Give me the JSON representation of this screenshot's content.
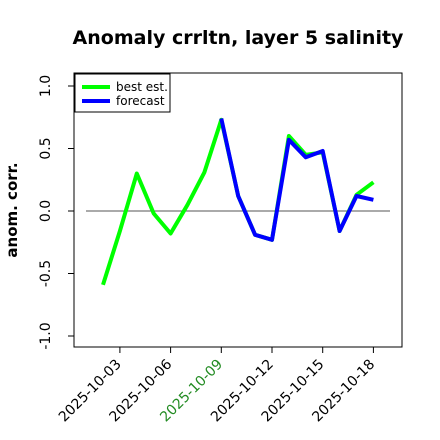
{
  "chart_data": {
    "type": "line",
    "title": "Anomaly crrltn, layer 5 salinity",
    "xlabel": "",
    "ylabel": "anom. corr.",
    "ylim": [
      -1.0,
      1.0
    ],
    "yticks": [
      "-1.0",
      "-0.5",
      "0.0",
      "0.5",
      "1.0"
    ],
    "xticks": [
      "2025-10-03",
      "2025-10-06",
      "2025-10-09",
      "2025-10-12",
      "2025-10-15",
      "2025-10-18"
    ],
    "highlight_tick": "2025-10-09",
    "highlight_color": "#228B22",
    "reference_line": 0.0,
    "legend_position": "top-left",
    "x": [
      "2025-10-02",
      "2025-10-03",
      "2025-10-04",
      "2025-10-05",
      "2025-10-06",
      "2025-10-07",
      "2025-10-08",
      "2025-10-09",
      "2025-10-10",
      "2025-10-11",
      "2025-10-12",
      "2025-10-13",
      "2025-10-14",
      "2025-10-15",
      "2025-10-16",
      "2025-10-17",
      "2025-10-18"
    ],
    "series": [
      {
        "name": "best est.",
        "color": "#00ff00",
        "values": [
          -0.59,
          -0.16,
          0.3,
          -0.02,
          -0.18,
          0.05,
          0.31,
          0.73,
          0.12,
          -0.19,
          -0.23,
          0.6,
          0.45,
          0.47,
          -0.16,
          0.13,
          0.23
        ]
      },
      {
        "name": "forecast",
        "color": "#0000ff",
        "values": [
          null,
          null,
          null,
          null,
          null,
          null,
          null,
          0.74,
          0.12,
          -0.19,
          -0.23,
          0.57,
          0.43,
          0.48,
          -0.16,
          0.12,
          0.09
        ]
      }
    ]
  }
}
